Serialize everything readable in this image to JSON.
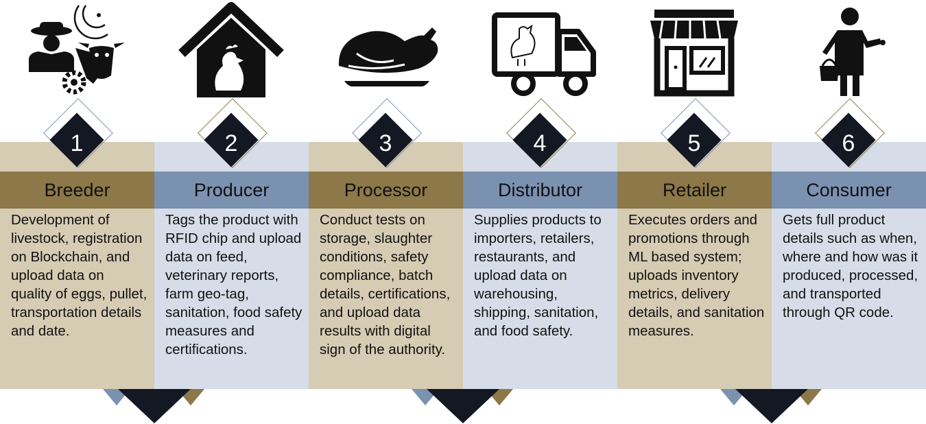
{
  "stages": [
    {
      "number": "1",
      "title": "Breeder",
      "icon": "farmer-with-cow-icon",
      "description": "Development of livestock, registration on Blockchain, and upload data on quality of eggs, pullet, transportation details and date."
    },
    {
      "number": "2",
      "title": "Producer",
      "icon": "chicken-house-icon",
      "description": "Tags the product with RFID chip and upload data on feed, veterinary reports, farm geo-tag, sanitation, food safety measures and certifications."
    },
    {
      "number": "3",
      "title": "Processor",
      "icon": "roast-chicken-icon",
      "description": "Conduct tests on storage, slaughter conditions, safety compliance, batch details, certifications, and upload data results with digital sign of the authority."
    },
    {
      "number": "4",
      "title": "Distributor",
      "icon": "delivery-truck-icon",
      "description": "Supplies products to importers, retailers, restaurants, and upload data on warehousing, shipping, sanitation, and food safety."
    },
    {
      "number": "5",
      "title": "Retailer",
      "icon": "store-front-icon",
      "description": "Executes orders and promotions through ML based system; uploads inventory metrics, delivery details, and sanitation measures."
    },
    {
      "number": "6",
      "title": "Consumer",
      "icon": "shopper-icon",
      "description": "Gets full product details such as when, where and how was it produced, processed, and transported through QR code."
    }
  ],
  "colors": {
    "tan": "#d6cbb3",
    "blue": "#d6dde8",
    "bar_tan": "#8c7848",
    "bar_blue": "#7b91b0",
    "dark": "#131823"
  }
}
